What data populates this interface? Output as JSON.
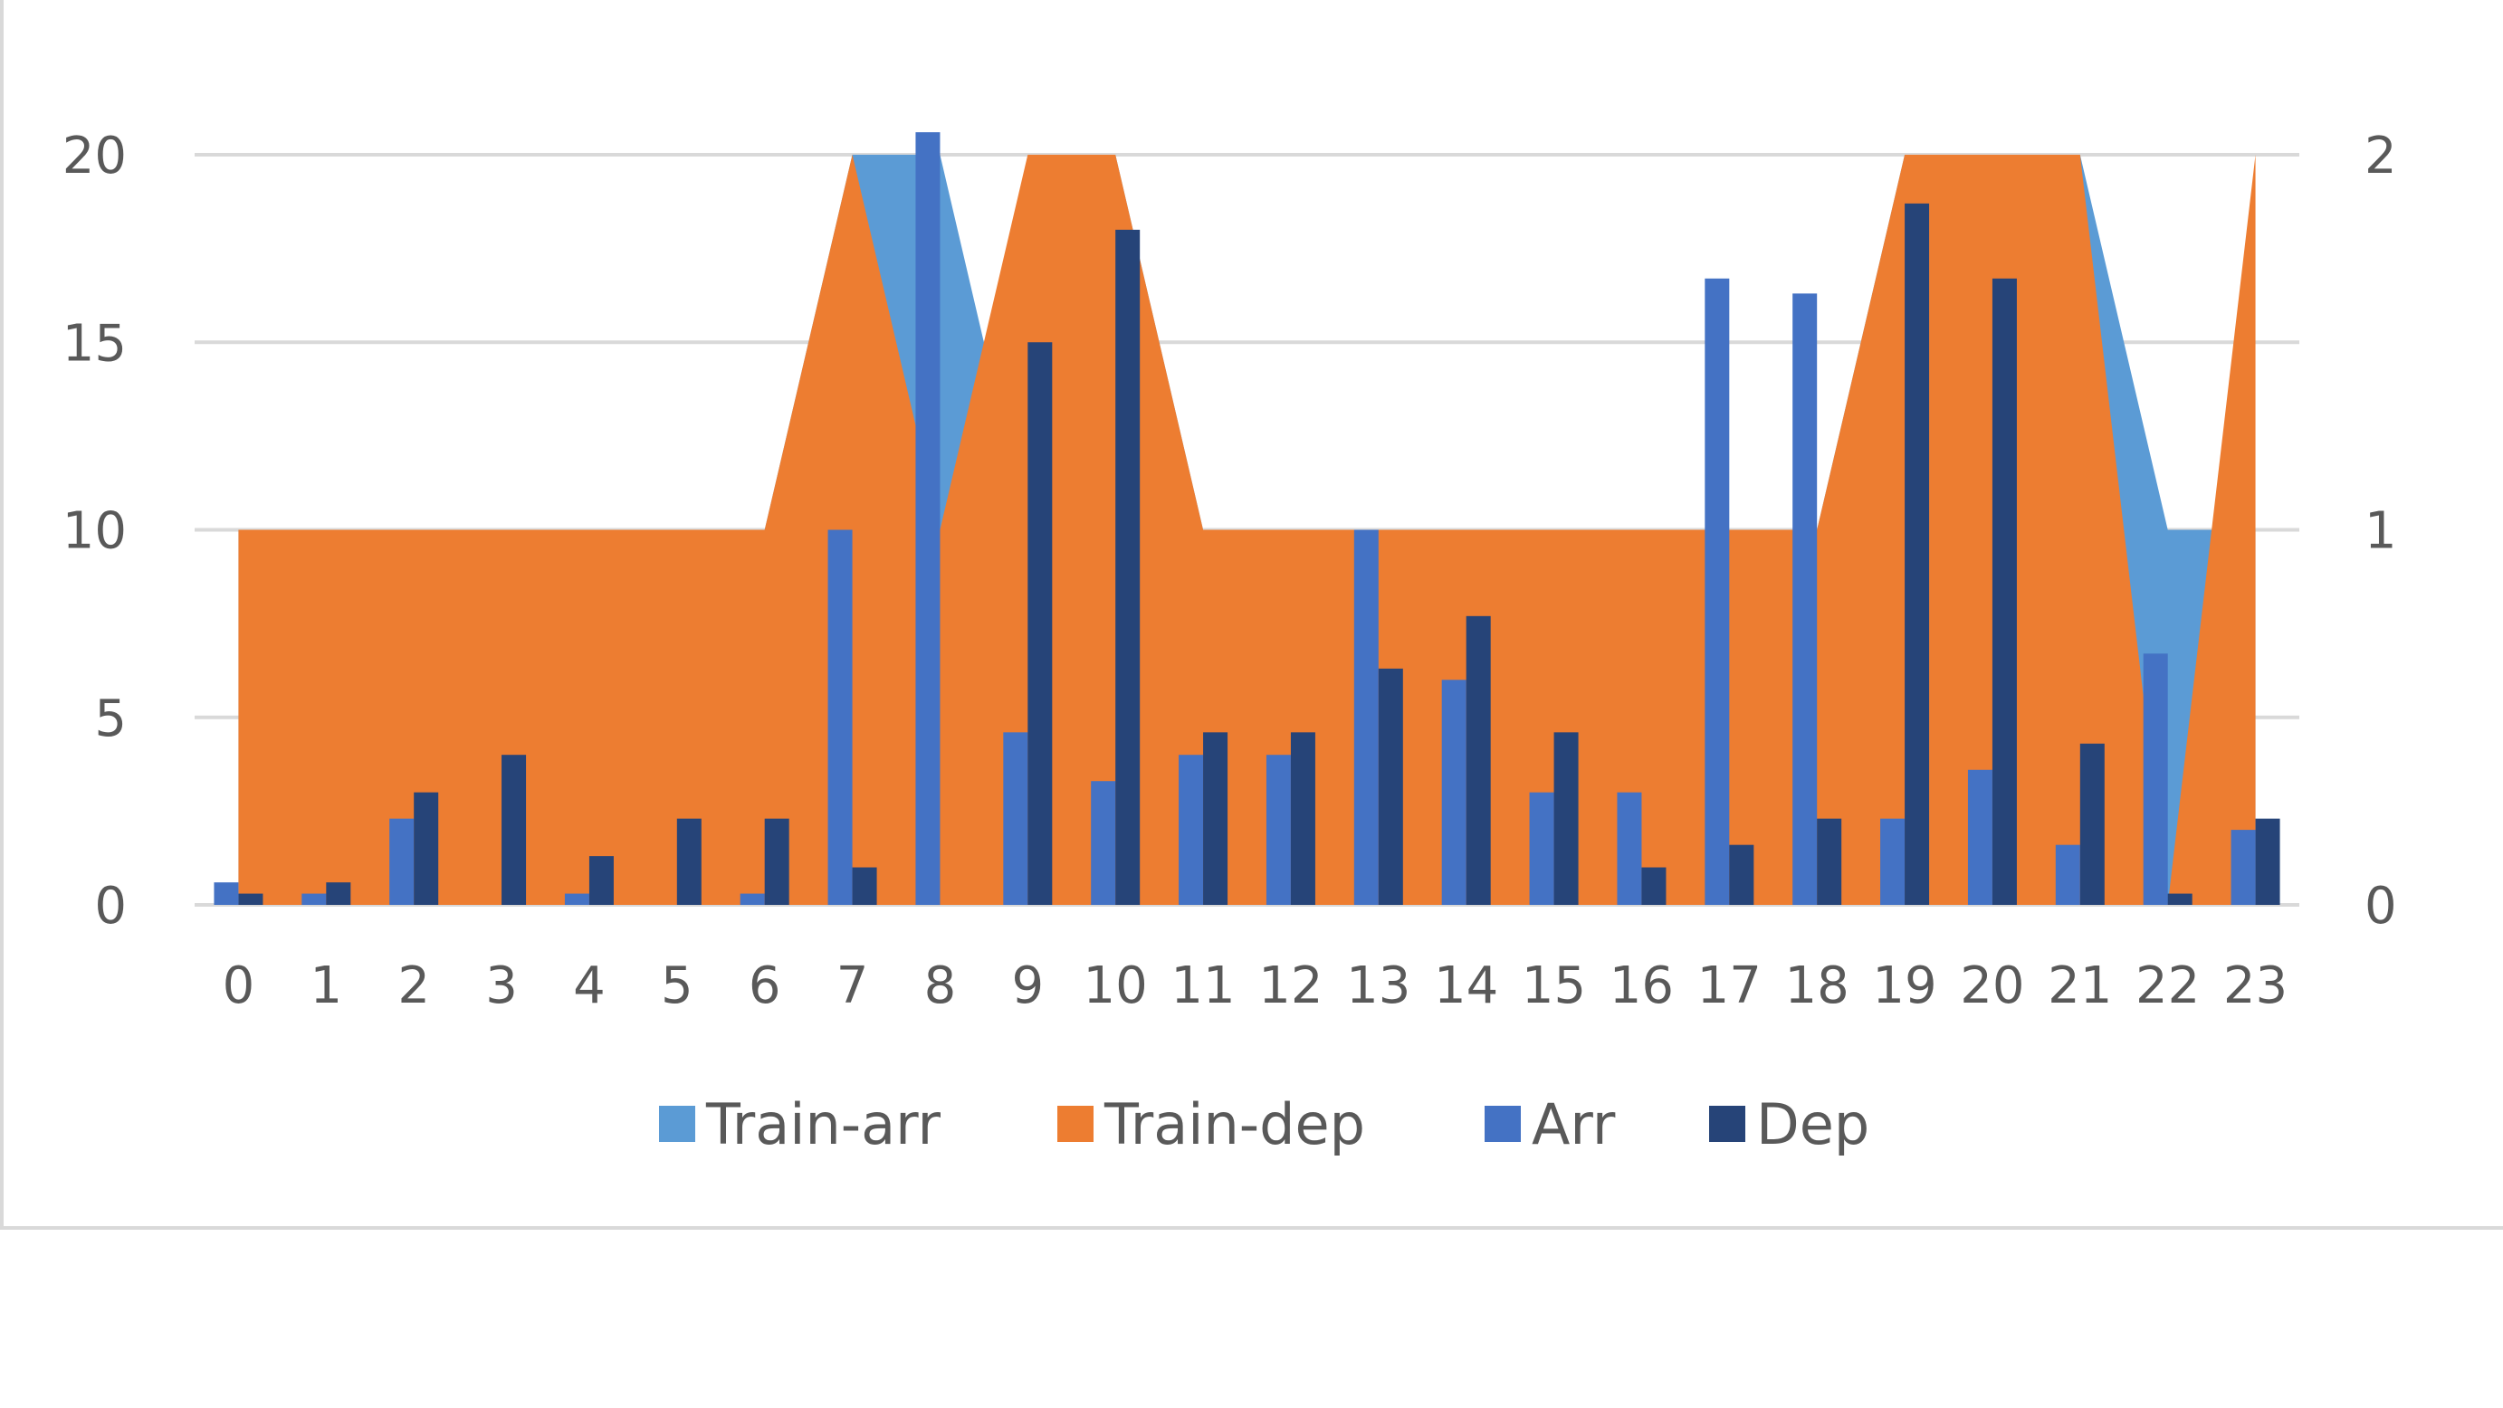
{
  "chart_data": {
    "type": "combo",
    "categories": [
      "0",
      "1",
      "2",
      "3",
      "4",
      "5",
      "6",
      "7",
      "8",
      "9",
      "10",
      "11",
      "12",
      "13",
      "14",
      "15",
      "16",
      "17",
      "18",
      "19",
      "20",
      "21",
      "22",
      "23"
    ],
    "left_axis": {
      "ylim": [
        0,
        20
      ],
      "ticks": [
        "0",
        "5",
        "10",
        "15",
        "20"
      ]
    },
    "right_axis": {
      "ylim": [
        0,
        2
      ],
      "ticks": [
        "0",
        "1",
        "2"
      ]
    },
    "series": [
      {
        "name": "Train-arr",
        "kind": "area",
        "axis": "left",
        "color": "#5B9BD5",
        "values": [
          10,
          10,
          10,
          10,
          10,
          10,
          10,
          20,
          20,
          10,
          20,
          10,
          10,
          10,
          10,
          10,
          10,
          10,
          10,
          20,
          20,
          20,
          10,
          10
        ]
      },
      {
        "name": "Train-dep",
        "kind": "area",
        "axis": "left",
        "color": "#ED7D31",
        "values": [
          10,
          10,
          10,
          10,
          10,
          10,
          10,
          20,
          10,
          20,
          20,
          10,
          10,
          10,
          10,
          10,
          10,
          10,
          10,
          20,
          20,
          20,
          0,
          20
        ]
      },
      {
        "name": "Arr",
        "kind": "bar",
        "axis": "right",
        "color": "#4472C4",
        "values": [
          0.06,
          0.03,
          0.23,
          0,
          0.03,
          0,
          0.03,
          1,
          2.06,
          0.46,
          0.33,
          0.4,
          0.4,
          1,
          0.6,
          0.3,
          0.3,
          1.67,
          1.63,
          0.23,
          0.36,
          0.16,
          0.67,
          0.2
        ]
      },
      {
        "name": "Dep",
        "kind": "bar",
        "axis": "right",
        "color": "#264478",
        "values": [
          0.03,
          0.06,
          0.3,
          0.4,
          0.13,
          0.23,
          0.23,
          0.1,
          0,
          1.5,
          1.8,
          0.46,
          0.46,
          0.63,
          0.77,
          0.46,
          0.1,
          0.16,
          0.23,
          1.87,
          1.67,
          0.43,
          0.03,
          0.23
        ]
      }
    ],
    "grid": true,
    "legend_position": "bottom"
  }
}
